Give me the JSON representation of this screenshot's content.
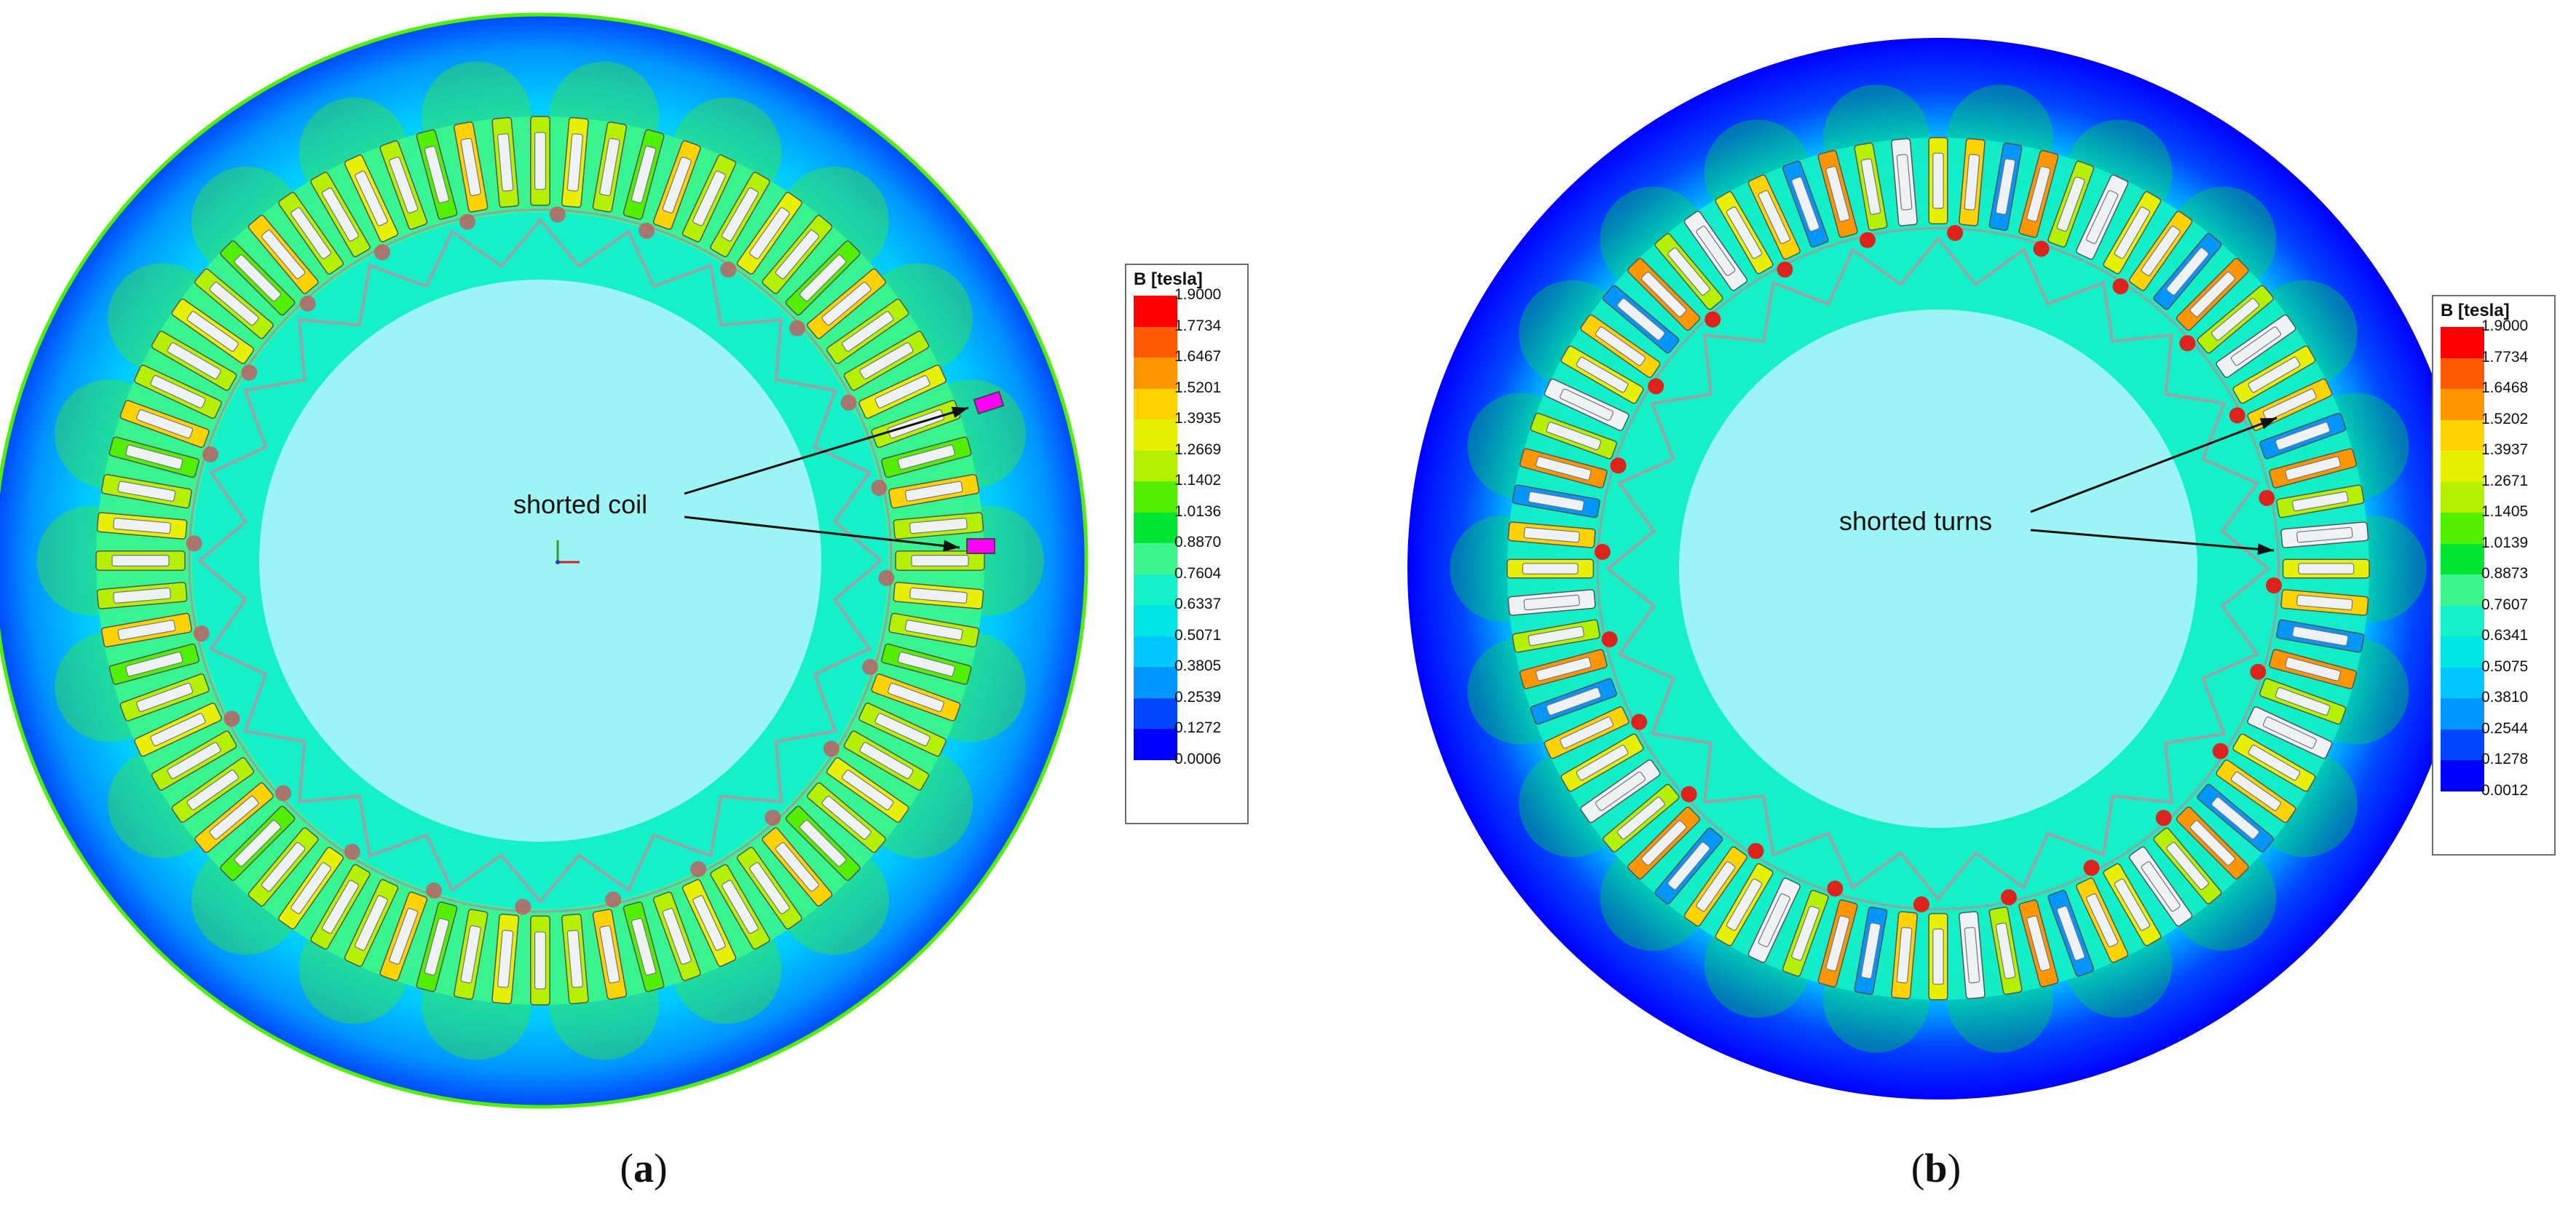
{
  "colors": {
    "scale": [
      "#0000ff",
      "#0046ff",
      "#0096ff",
      "#00c8ff",
      "#00e6e6",
      "#14f0c8",
      "#3cf58c",
      "#00e632",
      "#50f000",
      "#b4f000",
      "#e6f000",
      "#ffd200",
      "#ff9600",
      "#ff5a00",
      "#ff0000"
    ],
    "rotor": "#9cf4f4",
    "tooth": "#eef2f5",
    "coil_highlight": "#ff00ff"
  },
  "panel_a": {
    "legend": {
      "title": "B [tesla]",
      "values": [
        "1.9000",
        "1.7734",
        "1.6467",
        "1.5201",
        "1.3935",
        "1.2669",
        "1.1402",
        "1.0136",
        "0.8870",
        "0.7604",
        "0.6337",
        "0.5071",
        "0.3805",
        "0.2539",
        "0.1272",
        "0.0006"
      ]
    },
    "annotation": "shorted coil",
    "caption_letter": "a"
  },
  "panel_b": {
    "legend": {
      "title": "B [tesla]",
      "values": [
        "1.9000",
        "1.7734",
        "1.6468",
        "1.5202",
        "1.3937",
        "1.2671",
        "1.1405",
        "1.0139",
        "0.8873",
        "0.7607",
        "0.6341",
        "0.5075",
        "0.3810",
        "0.2544",
        "0.1278",
        "0.0012"
      ]
    },
    "annotation": "shorted turns",
    "caption_letter": "b"
  }
}
